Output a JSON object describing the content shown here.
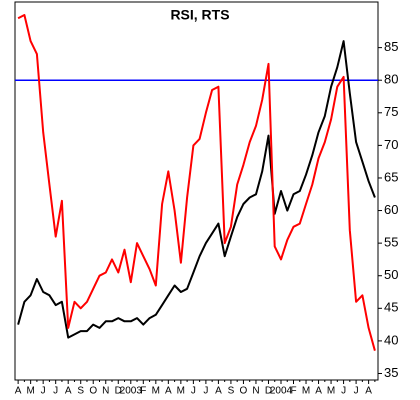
{
  "chart_data": {
    "type": "line",
    "title": "RSI, RTS",
    "categories": [
      "A",
      null,
      "M",
      null,
      "J",
      null,
      "J",
      null,
      "A",
      null,
      "S",
      null,
      "O",
      null,
      "N",
      null,
      "D",
      null,
      "2003",
      null,
      "F",
      null,
      "M",
      null,
      "A",
      null,
      "M",
      null,
      "J",
      null,
      "J",
      null,
      "A",
      null,
      "S",
      null,
      "O",
      null,
      "N",
      null,
      "D",
      null,
      "2004",
      null,
      "F",
      null,
      "M",
      null,
      "A",
      null,
      "M",
      null,
      "J",
      null,
      "J",
      null,
      "A",
      null
    ],
    "series": [
      {
        "name": "RTS",
        "color": "#000000",
        "values": [
          42.5,
          46,
          47,
          49.5,
          47.5,
          47,
          45.5,
          46,
          40.5,
          41,
          41.5,
          41.5,
          42.5,
          42,
          43,
          43,
          43.5,
          43,
          43,
          43.5,
          42.5,
          43.5,
          44,
          45.5,
          47,
          48.5,
          47.5,
          48,
          50.5,
          53,
          55,
          56.5,
          58,
          53,
          56,
          59,
          61,
          62,
          62.5,
          66,
          71.5,
          59.5,
          63,
          60,
          62.5,
          63,
          65.5,
          68.5,
          72,
          74.5,
          79,
          82,
          86,
          78,
          70.5,
          67.5,
          64.5,
          62
        ]
      },
      {
        "name": "RSI",
        "color": "#ff0000",
        "values": [
          89.5,
          90,
          86,
          84,
          72,
          64,
          56,
          61.5,
          42,
          46,
          45,
          46,
          48,
          50,
          50.5,
          52.5,
          50.5,
          54,
          49,
          55,
          53,
          51,
          48.5,
          61,
          66,
          60,
          52,
          62,
          70,
          71,
          75,
          78.5,
          79,
          55,
          57.5,
          64,
          67,
          70.5,
          73,
          77,
          82.5,
          54.5,
          52.5,
          55.5,
          57.5,
          58,
          61,
          64,
          68,
          70.5,
          74,
          79,
          80.5,
          57,
          46,
          47,
          42,
          38.5
        ]
      }
    ],
    "reference_lines": [
      {
        "value": 80,
        "color": "#0000ff"
      }
    ],
    "ylim": [
      34,
      92
    ],
    "yticks": [
      35,
      40,
      45,
      50,
      55,
      60,
      65,
      70,
      75,
      80,
      85
    ],
    "grid": false
  }
}
